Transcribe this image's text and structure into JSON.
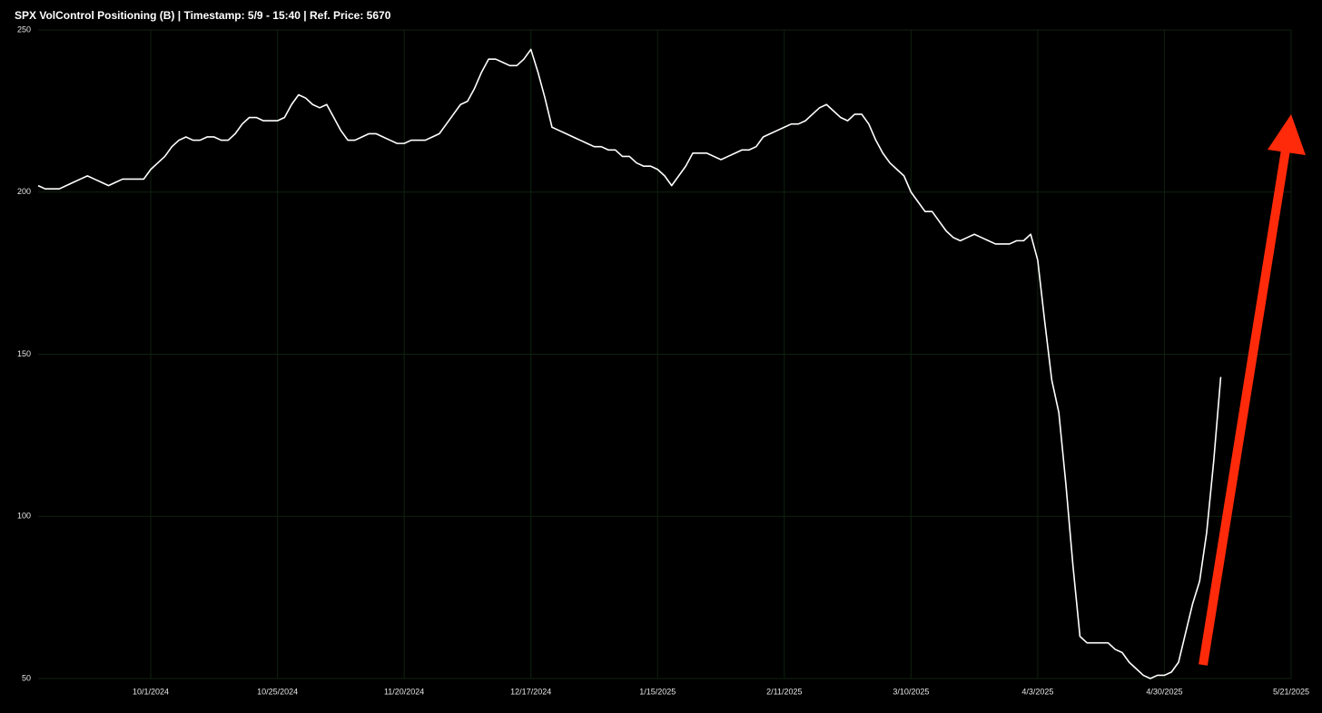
{
  "chart_data": {
    "type": "line",
    "title": "SPX VolControl Positioning (B) | Timestamp: 5/9 - 15:40  | Ref. Price: 5670",
    "categories": [
      null,
      null,
      null,
      null,
      null,
      null,
      null,
      null,
      null,
      null,
      null,
      null,
      null,
      null,
      null,
      null,
      "10/1/2024",
      null,
      null,
      null,
      null,
      null,
      null,
      null,
      null,
      null,
      null,
      null,
      null,
      null,
      null,
      null,
      null,
      null,
      "10/25/2024",
      null,
      null,
      null,
      null,
      null,
      null,
      null,
      null,
      null,
      null,
      null,
      null,
      null,
      null,
      null,
      null,
      null,
      "11/20/2024",
      null,
      null,
      null,
      null,
      null,
      null,
      null,
      null,
      null,
      null,
      null,
      null,
      null,
      null,
      null,
      null,
      null,
      "12/17/2024",
      null,
      null,
      null,
      null,
      null,
      null,
      null,
      null,
      null,
      null,
      null,
      null,
      null,
      null,
      null,
      null,
      null,
      "1/15/2025",
      null,
      null,
      null,
      null,
      null,
      null,
      null,
      null,
      null,
      null,
      null,
      null,
      null,
      null,
      null,
      null,
      null,
      "2/11/2025",
      null,
      null,
      null,
      null,
      null,
      null,
      null,
      null,
      null,
      null,
      null,
      null,
      null,
      null,
      null,
      null,
      null,
      "3/10/2025",
      null,
      null,
      null,
      null,
      null,
      null,
      null,
      null,
      null,
      null,
      null,
      null,
      null,
      null,
      null,
      null,
      null,
      "4/3/2025",
      null,
      null,
      null,
      null,
      null,
      null,
      null,
      null,
      null,
      null,
      null,
      null,
      null,
      null,
      null,
      null,
      null,
      "4/30/2025",
      null,
      null,
      null,
      null,
      null,
      null,
      null,
      null,
      null,
      null,
      null,
      null,
      null,
      null,
      null,
      null,
      null,
      "5/21/2025"
    ],
    "values": [
      202,
      201,
      201,
      201,
      202,
      203,
      204,
      205,
      204,
      203,
      202,
      203,
      204,
      204,
      204,
      204,
      207,
      209,
      211,
      214,
      216,
      217,
      216,
      216,
      217,
      217,
      216,
      216,
      218,
      221,
      223,
      223,
      222,
      222,
      222,
      223,
      227,
      230,
      229,
      227,
      226,
      227,
      223,
      219,
      216,
      216,
      217,
      218,
      218,
      217,
      216,
      215,
      215,
      216,
      216,
      216,
      217,
      218,
      221,
      224,
      227,
      228,
      232,
      237,
      241,
      241,
      240,
      239,
      239,
      241,
      244,
      237,
      229,
      220,
      219,
      218,
      217,
      216,
      215,
      214,
      214,
      213,
      213,
      211,
      211,
      209,
      208,
      208,
      207,
      205,
      202,
      205,
      208,
      212,
      212,
      212,
      211,
      210,
      211,
      212,
      213,
      213,
      214,
      217,
      218,
      219,
      220,
      221,
      221,
      222,
      224,
      226,
      227,
      225,
      223,
      222,
      224,
      224,
      221,
      216,
      212,
      209,
      207,
      205,
      200,
      197,
      194,
      194,
      191,
      188,
      186,
      185,
      186,
      187,
      186,
      185,
      184,
      184,
      184,
      185,
      185,
      187,
      179,
      160,
      142,
      132,
      110,
      85,
      63,
      61,
      61,
      61,
      61,
      59,
      58,
      55,
      53,
      51,
      50,
      51,
      51,
      52,
      55,
      64,
      73,
      80,
      95,
      117,
      143,
      null,
      null,
      null,
      null,
      null,
      null,
      null,
      null,
      null,
      null
    ],
    "color": "#ffffff",
    "ylim": [
      50,
      250
    ],
    "yticks": [
      50,
      100,
      150,
      200,
      250
    ],
    "grid": true
  }
}
